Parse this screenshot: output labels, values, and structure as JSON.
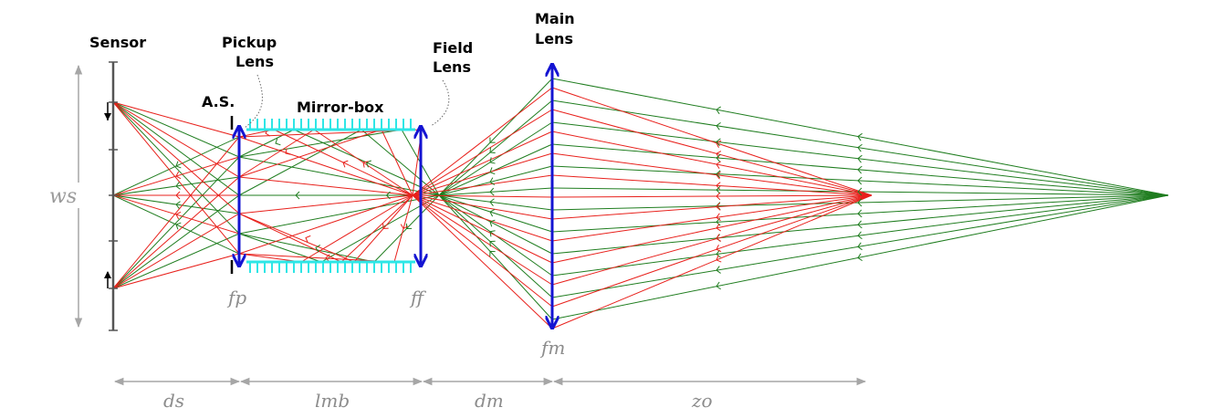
{
  "labels": {
    "sensor": "Sensor",
    "pickup_line1": "Pickup",
    "pickup_line2": "Lens",
    "field_line1": "Field",
    "field_line2": "Lens",
    "main_line1": "Main",
    "main_line2": "Lens",
    "aperture_stop": "A.S.",
    "mirror_box": "Mirror-box",
    "ws": "ws",
    "fp": "fp",
    "ff": "ff",
    "fm": "fm"
  },
  "dimensions": {
    "ds": "ds",
    "lmb": "lmb",
    "dm": "dm",
    "zo": "zo"
  },
  "colors": {
    "red_rays": "#e8211c",
    "green_rays": "#1f7d1f",
    "lens": "#1414d2",
    "mirror": "#2ee6e6",
    "sensor": "#555555",
    "dimension": "#a6a6a6"
  }
}
